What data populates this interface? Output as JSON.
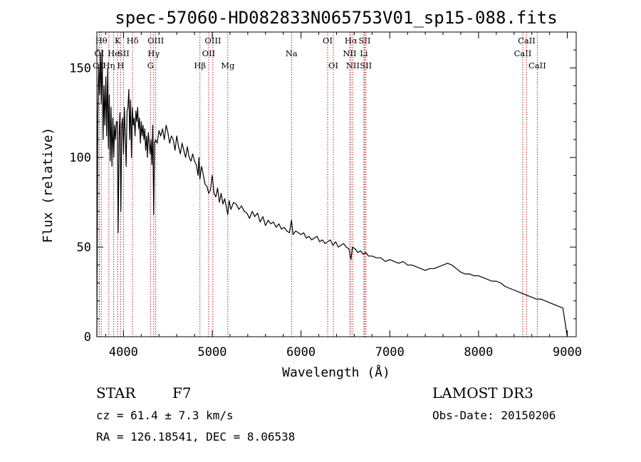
{
  "chart_data": {
    "type": "line",
    "title": "spec-57060-HD082833N065753V01_sp15-088.fits",
    "xlabel": "Wavelength (Å)",
    "ylabel": "Flux (relative)",
    "xlim": [
      3700,
      9100
    ],
    "ylim": [
      0,
      170
    ],
    "xticks": [
      4000,
      5000,
      6000,
      7000,
      8000,
      9000
    ],
    "yticks": [
      0,
      50,
      100,
      150
    ],
    "series": [
      {
        "name": "flux",
        "x": [
          3700,
          3710,
          3720,
          3730,
          3740,
          3750,
          3760,
          3770,
          3780,
          3790,
          3800,
          3810,
          3820,
          3830,
          3840,
          3850,
          3860,
          3870,
          3880,
          3890,
          3900,
          3910,
          3920,
          3930,
          3940,
          3950,
          3960,
          3970,
          3980,
          3990,
          4000,
          4010,
          4020,
          4030,
          4040,
          4050,
          4060,
          4070,
          4080,
          4090,
          4100,
          4110,
          4120,
          4130,
          4140,
          4150,
          4160,
          4170,
          4180,
          4190,
          4200,
          4210,
          4220,
          4230,
          4240,
          4250,
          4260,
          4270,
          4280,
          4290,
          4300,
          4310,
          4320,
          4330,
          4340,
          4350,
          4360,
          4380,
          4400,
          4420,
          4440,
          4460,
          4480,
          4500,
          4520,
          4540,
          4560,
          4580,
          4600,
          4620,
          4640,
          4660,
          4680,
          4700,
          4720,
          4740,
          4760,
          4780,
          4800,
          4820,
          4840,
          4850,
          4861,
          4870,
          4880,
          4900,
          4920,
          4940,
          4960,
          4980,
          5000,
          5020,
          5040,
          5060,
          5080,
          5100,
          5120,
          5140,
          5160,
          5175,
          5190,
          5210,
          5240,
          5270,
          5300,
          5330,
          5360,
          5390,
          5420,
          5450,
          5480,
          5510,
          5540,
          5570,
          5600,
          5630,
          5660,
          5690,
          5720,
          5750,
          5780,
          5810,
          5840,
          5870,
          5893,
          5910,
          5940,
          5970,
          6000,
          6030,
          6060,
          6090,
          6120,
          6150,
          6180,
          6210,
          6240,
          6270,
          6300,
          6330,
          6360,
          6390,
          6420,
          6450,
          6480,
          6510,
          6540,
          6563,
          6580,
          6610,
          6640,
          6670,
          6700,
          6730,
          6760,
          6800,
          6850,
          6900,
          6950,
          7000,
          7050,
          7100,
          7150,
          7200,
          7250,
          7300,
          7350,
          7400,
          7450,
          7500,
          7550,
          7600,
          7650,
          7700,
          7750,
          7800,
          7850,
          7900,
          7950,
          8000,
          8050,
          8100,
          8150,
          8200,
          8250,
          8300,
          8350,
          8400,
          8450,
          8500,
          8550,
          8600,
          8650,
          8700,
          8750,
          8800,
          8850,
          8900,
          8950,
          9000
        ],
        "values": [
          0,
          120,
          150,
          135,
          158,
          130,
          160,
          110,
          140,
          118,
          145,
          112,
          150,
          105,
          135,
          98,
          128,
          95,
          122,
          100,
          118,
          110,
          120,
          120,
          58,
          112,
          125,
          70,
          118,
          122,
          102,
          128,
          112,
          95,
          126,
          128,
          138,
          110,
          132,
          100,
          128,
          118,
          122,
          112,
          126,
          120,
          128,
          116,
          122,
          108,
          120,
          112,
          118,
          110,
          116,
          104,
          112,
          100,
          114,
          108,
          102,
          110,
          96,
          118,
          68,
          108,
          110,
          108,
          115,
          112,
          116,
          110,
          118,
          114,
          108,
          112,
          110,
          104,
          112,
          106,
          102,
          108,
          104,
          100,
          106,
          100,
          98,
          102,
          98,
          96,
          90,
          100,
          88,
          92,
          95,
          90,
          85,
          84,
          80,
          82,
          90,
          80,
          78,
          83,
          75,
          80,
          74,
          77,
          72,
          68,
          76,
          71,
          75,
          74,
          71,
          73,
          70,
          69,
          66,
          70,
          67,
          69,
          64,
          67,
          62,
          65,
          63,
          64,
          61,
          63,
          60,
          61,
          59,
          58,
          65,
          57,
          59,
          58,
          57,
          58,
          55,
          56,
          54,
          55,
          56,
          53,
          54,
          52,
          53,
          54,
          51,
          53,
          50,
          51,
          52,
          50,
          49,
          43,
          50,
          49,
          47,
          48,
          46,
          47,
          45,
          45,
          44,
          44,
          42,
          43,
          42,
          41,
          42,
          40,
          40,
          39,
          38,
          37,
          38,
          38,
          39,
          40,
          41,
          40,
          38,
          36,
          35,
          35,
          34,
          34,
          33,
          32,
          31,
          31,
          30,
          28,
          27,
          26,
          25,
          24,
          23,
          22,
          21,
          21,
          20,
          19,
          18,
          17,
          16,
          0
        ]
      }
    ],
    "line_markers": [
      {
        "label": "OII",
        "x": 3727,
        "row": 2
      },
      {
        "label": "OI",
        "x": 3727,
        "row": 1
      },
      {
        "label": "Hθ",
        "x": 3750,
        "row": 0
      },
      {
        "label": "Hη",
        "x": 3835,
        "row": 2
      },
      {
        "label": "He",
        "x": 3889,
        "row": 1
      },
      {
        "label": "K",
        "x": 3934,
        "row": 0
      },
      {
        "label": "SII",
        "x": 4000,
        "row": 1
      },
      {
        "label": "H",
        "x": 3968,
        "row": 2
      },
      {
        "label": "Hδ",
        "x": 4102,
        "row": 0
      },
      {
        "label": "OIII",
        "x": 4363,
        "row": 0
      },
      {
        "label": "Hγ",
        "x": 4340,
        "row": 1
      },
      {
        "label": "G",
        "x": 4305,
        "row": 2
      },
      {
        "label": "Hβ",
        "x": 4861,
        "row": 2
      },
      {
        "label": "OIII",
        "x": 5007,
        "row": 0
      },
      {
        "label": "OII",
        "x": 4959,
        "row": 1
      },
      {
        "label": "Mg",
        "x": 5175,
        "row": 2
      },
      {
        "label": "Na",
        "x": 5893,
        "row": 1
      },
      {
        "label": "OI",
        "x": 6300,
        "row": 0
      },
      {
        "label": "OI",
        "x": 6364,
        "row": 2
      },
      {
        "label": "Hα",
        "x": 6563,
        "row": 0
      },
      {
        "label": "NII",
        "x": 6548,
        "row": 1
      },
      {
        "label": "NII",
        "x": 6584,
        "row": 2
      },
      {
        "label": "SII",
        "x": 6717,
        "row": 0
      },
      {
        "label": "Li",
        "x": 6708,
        "row": 1
      },
      {
        "label": "SII",
        "x": 6731,
        "row": 2
      },
      {
        "label": "CaII",
        "x": 8498,
        "row": 1
      },
      {
        "label": "CaII",
        "x": 8542,
        "row": 0
      },
      {
        "label": "CaII",
        "x": 8662,
        "row": 2
      }
    ]
  },
  "info": {
    "class_label": "STAR",
    "subclass": "F7",
    "survey": "LAMOST DR3",
    "redshift": "cz = 61.4 ± 7.3 km/s",
    "obs_date": "Obs-Date: 20150206",
    "coords": "RA = 126.18541, DEC =   8.06538"
  },
  "colors": {
    "line": "#000000",
    "marker": "#b22222"
  }
}
